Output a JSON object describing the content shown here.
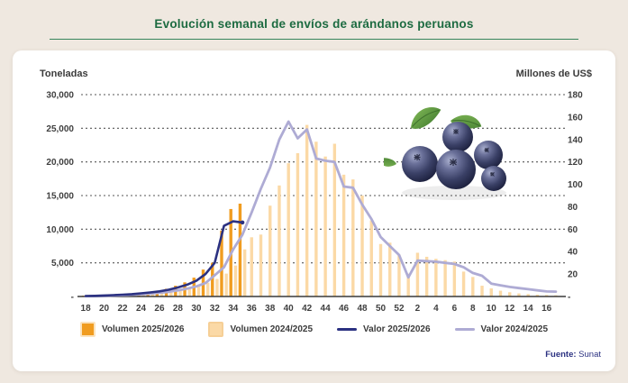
{
  "title": "Evolución semanal de envíos de arándanos peruanos",
  "source": {
    "label": "Fuente:",
    "value": "Sunat"
  },
  "axis_heads": {
    "left": "Toneladas",
    "right": "Millones de US$"
  },
  "colors": {
    "vol_2526": "#f09c20",
    "vol_2425": "#fbd9a6",
    "val_2526": "#2b3181",
    "val_2425": "#aeabd4",
    "title_green": "#1d6b41",
    "background": "#efe8e0",
    "grid": "#555555"
  },
  "legend": [
    {
      "label": "Volumen 2025/2026",
      "type": "bar",
      "color": "#f09c20"
    },
    {
      "label": "Volumen 2024/2025",
      "type": "bar",
      "color": "#fbd9a6"
    },
    {
      "label": "Valor 2025/2026",
      "type": "line",
      "color": "#2b3181"
    },
    {
      "label": "Valor 2024/2025",
      "type": "line",
      "color": "#aeabd4"
    }
  ],
  "chart_data": {
    "type": "bar",
    "subtype": "grouped-bars-with-lines-combo",
    "title": "Evolución semanal de envíos de arándanos peruanos",
    "x_description": "Semana del año (18 a 52, luego 1 a 17)",
    "weeks": [
      18,
      19,
      20,
      21,
      22,
      23,
      24,
      25,
      26,
      27,
      28,
      29,
      30,
      31,
      32,
      33,
      34,
      35,
      36,
      37,
      38,
      39,
      40,
      41,
      42,
      43,
      44,
      45,
      46,
      47,
      48,
      49,
      50,
      51,
      52,
      1,
      2,
      3,
      4,
      5,
      6,
      7,
      8,
      9,
      10,
      11,
      12,
      13,
      14,
      15,
      16,
      17
    ],
    "x_tick_labels_shown": [
      "18",
      "20",
      "22",
      "24",
      "26",
      "28",
      "30",
      "32",
      "34",
      "36",
      "38",
      "40",
      "42",
      "44",
      "46",
      "48",
      "50",
      "52",
      "2",
      "4",
      "6",
      "8",
      "10",
      "12",
      "14",
      "16"
    ],
    "left_axis": {
      "label": "Toneladas",
      "min": 0,
      "max": 30000,
      "ticks": [
        "30,000",
        "25,000",
        "20,000",
        "15,000",
        "10,000",
        "5,000",
        "-"
      ]
    },
    "right_axis": {
      "label": "Millones de US$",
      "min": 0,
      "max": 180,
      "ticks": [
        "180",
        "160",
        "140",
        "120",
        "100",
        "80",
        "60",
        "40",
        "20",
        "-"
      ]
    },
    "grid": "dotted horizontal at left-axis ticks",
    "legend_position": "bottom",
    "series": [
      {
        "name": "Volumen 2025/2026",
        "type": "bar",
        "axis": "left",
        "color": "#f09c20",
        "values": [
          120,
          150,
          190,
          240,
          300,
          380,
          480,
          620,
          850,
          1150,
          1600,
          2100,
          2800,
          4000,
          5000,
          9800,
          13000,
          13800,
          null,
          null,
          null,
          null,
          null,
          null,
          null,
          null,
          null,
          null,
          null,
          null,
          null,
          null,
          null,
          null,
          null,
          null,
          null,
          null,
          null,
          null,
          null,
          null,
          null,
          null,
          null,
          null,
          null,
          null,
          null,
          null,
          null,
          null
        ]
      },
      {
        "name": "Volumen 2024/2025",
        "type": "bar",
        "axis": "left",
        "color": "#fbd9a6",
        "values": [
          80,
          110,
          140,
          180,
          230,
          290,
          370,
          470,
          600,
          760,
          960,
          1250,
          1600,
          2050,
          2600,
          3400,
          4600,
          7000,
          8800,
          9200,
          13500,
          16500,
          19800,
          21300,
          25500,
          23000,
          20800,
          22700,
          18100,
          17400,
          15000,
          11300,
          7800,
          8000,
          6200,
          3400,
          6500,
          5900,
          5600,
          5400,
          5200,
          3700,
          2900,
          1600,
          1200,
          860,
          630,
          450,
          360,
          270,
          225,
          180
        ]
      },
      {
        "name": "Valor 2025/2026",
        "type": "line",
        "axis": "right",
        "color": "#2b3181",
        "values": [
          0.4,
          0.6,
          0.9,
          1.2,
          1.6,
          2.1,
          2.8,
          3.6,
          4.6,
          6,
          8,
          10.5,
          14,
          20,
          30,
          63,
          67,
          66,
          null,
          null,
          null,
          null,
          null,
          null,
          null,
          null,
          null,
          null,
          null,
          null,
          null,
          null,
          null,
          null,
          null,
          null,
          null,
          null,
          null,
          null,
          null,
          null,
          null,
          null,
          null,
          null,
          null,
          null,
          null,
          null,
          null,
          null
        ]
      },
      {
        "name": "Valor 2024/2025",
        "type": "line",
        "axis": "right",
        "color": "#aeabd4",
        "values": [
          0.3,
          0.45,
          0.6,
          0.8,
          1.1,
          1.5,
          2,
          2.6,
          3.3,
          4.2,
          5.4,
          7,
          9,
          12,
          19,
          26,
          42,
          55,
          75,
          96,
          115,
          140,
          156,
          141,
          149,
          123,
          121,
          120,
          98,
          97,
          82,
          69,
          53,
          45,
          37,
          17,
          32,
          31.5,
          31,
          30,
          29,
          26,
          21,
          18.5,
          11.5,
          10,
          8.5,
          7.5,
          6.5,
          5.5,
          4.5,
          4.3
        ]
      }
    ]
  }
}
